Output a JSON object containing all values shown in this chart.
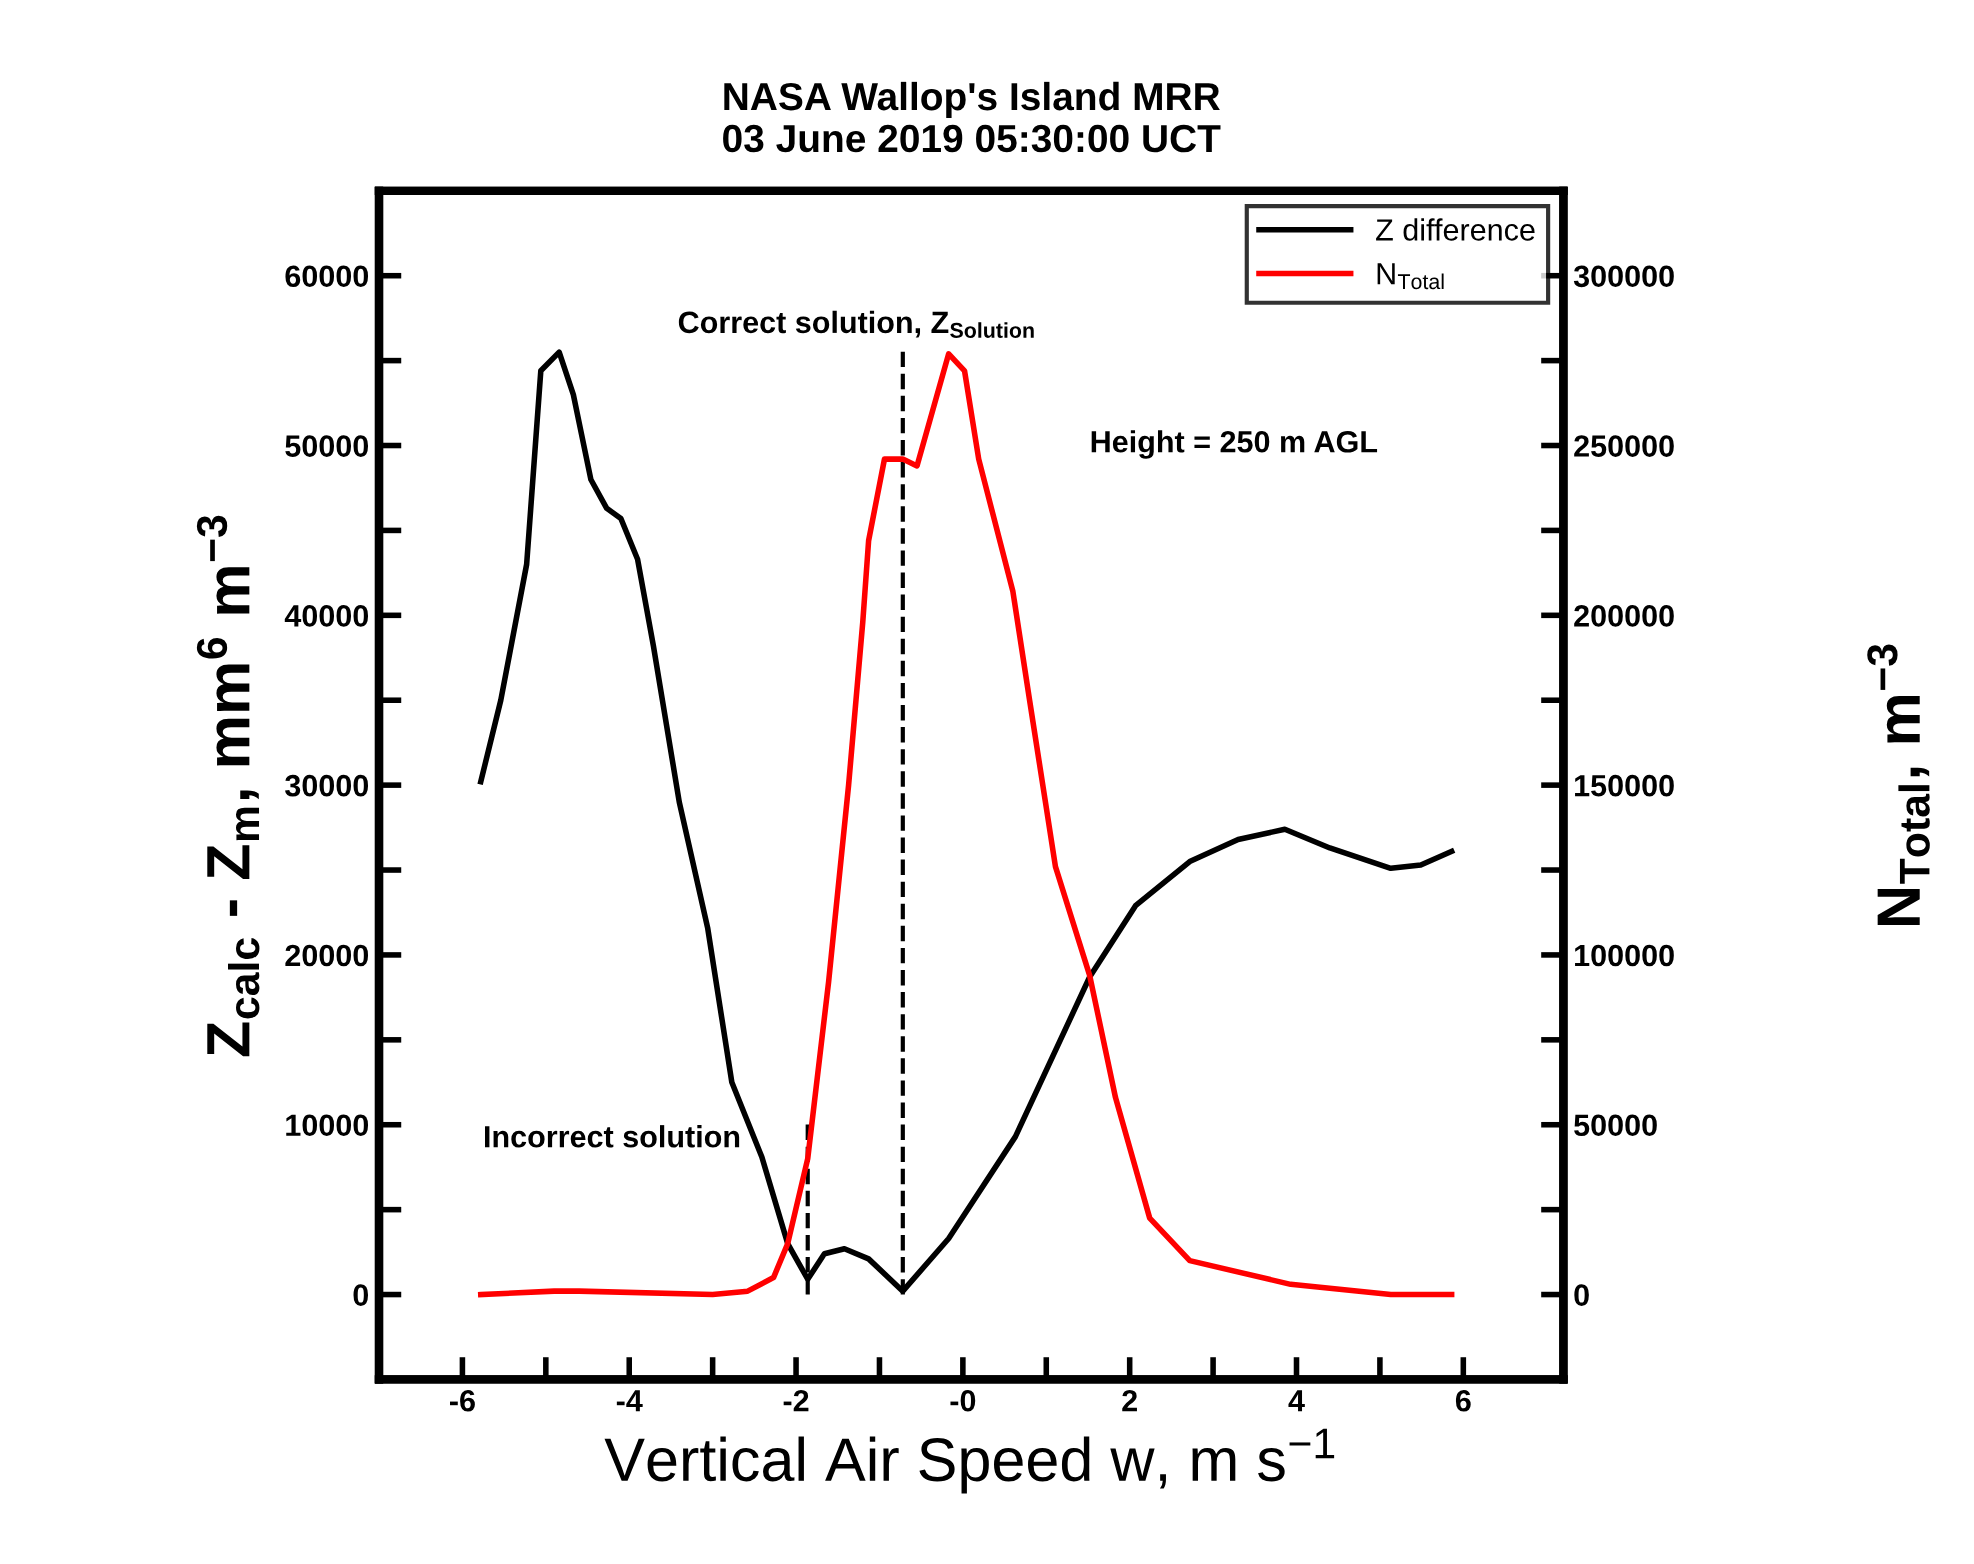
{
  "chart_data": {
    "type": "line",
    "title": "NASA Wallop's Island MRR\n03 June 2019 05:30:00 UCT",
    "xlabel": "Vertical Air Speed w, m s$^{−1}$",
    "ylabel": "Z$_{calc}$ - Z$_{m}$, mm$^{6}$ m$^{−3}$",
    "y2label": "N$_{Total}$, m$^{−3}$",
    "xlim": [
      -7,
      7.2
    ],
    "xticks": [
      {
        "value": -6,
        "label": "-6"
      },
      {
        "value": -5,
        "label": null
      },
      {
        "value": -4,
        "label": "-4"
      },
      {
        "value": -3,
        "label": null
      },
      {
        "value": -2,
        "label": "-2"
      },
      {
        "value": -1,
        "label": null
      },
      {
        "value": 0,
        "label": "-0"
      },
      {
        "value": 1,
        "label": null
      },
      {
        "value": 2,
        "label": "2"
      },
      {
        "value": 3,
        "label": null
      },
      {
        "value": 4,
        "label": "4"
      },
      {
        "value": 5,
        "label": null
      },
      {
        "value": 6,
        "label": "6"
      }
    ],
    "ylim": [
      -5000,
      65000
    ],
    "yticks": [
      0,
      {
        "value": 5000,
        "label": null
      },
      10000,
      {
        "value": 15000,
        "label": null
      },
      20000,
      {
        "value": 25000,
        "label": null
      },
      30000,
      {
        "value": 35000,
        "label": null
      },
      40000,
      {
        "value": 45000,
        "label": null
      },
      50000,
      {
        "value": 55000,
        "label": null
      },
      60000
    ],
    "y2lim": [
      -25000,
      325000
    ],
    "y2ticks": [
      0,
      {
        "value": 25000,
        "label": null
      },
      50000,
      {
        "value": 75000,
        "label": null
      },
      100000,
      {
        "value": 125000,
        "label": null
      },
      150000,
      {
        "value": 175000,
        "label": null
      },
      200000,
      {
        "value": 225000,
        "label": null
      },
      250000,
      {
        "value": 275000,
        "label": null
      },
      300000
    ],
    "grid": false,
    "legend": "top right",
    "line_style": "solid",
    "marker": "none",
    "series": [
      {
        "name": "Z difference",
        "color": "#000000",
        "x": [
          -5.78,
          -5.54,
          -5.23,
          -5.06,
          -4.84,
          -4.67,
          -4.46,
          -4.27,
          -4.1,
          -3.9,
          -3.71,
          -3.4,
          -3.06,
          -2.77,
          -2.41,
          -2.1,
          -1.86,
          -1.66,
          -1.42,
          -1.13,
          -0.72,
          -0.17,
          0.63,
          1.52,
          2.07,
          2.72,
          3.3,
          3.86,
          4.4,
          5.13,
          5.49,
          5.86
        ],
        "values": [
          30200,
          35000,
          43000,
          54400,
          55500,
          53000,
          48000,
          46300,
          45700,
          43300,
          38200,
          29000,
          21600,
          12500,
          8100,
          3000,
          900,
          2400,
          2700,
          2100,
          200,
          3300,
          9300,
          18700,
          22900,
          25500,
          26800,
          27400,
          26300,
          25100,
          25300,
          26100
        ]
      },
      {
        "name": "N$_{Total}$",
        "color": "#ff0000",
        "axis": "y2",
        "x": [
          -5.78,
          -4.9,
          -4.6,
          -3.0,
          -2.58,
          -2.27,
          -2.1,
          -1.86,
          -1.61,
          -1.37,
          -1.2,
          -1.13,
          -0.94,
          -0.72,
          -0.55,
          -0.17,
          0.02,
          0.19,
          0.6,
          0.8,
          0.99,
          1.11,
          1.52,
          1.83,
          2.24,
          2.72,
          3.93,
          5.13,
          5.86
        ],
        "values": [
          0,
          1000,
          1000,
          0,
          1000,
          5000,
          15000,
          40000,
          92000,
          150000,
          198000,
          222000,
          246000,
          246000,
          244000,
          277000,
          272000,
          246000,
          207000,
          175000,
          145000,
          126000,
          94000,
          58000,
          22500,
          10000,
          3000,
          0,
          0
        ]
      }
    ],
    "ref_lines": [
      {
        "axis": "x",
        "value": -1.86,
        "label": "Incorrect solution",
        "color": "#000000",
        "line_style": "dashed"
      },
      {
        "axis": "x",
        "value": -0.72,
        "label": "Correct solution, Z$_{Solution}$",
        "color": "#000000",
        "line_style": "dashed"
      }
    ],
    "annotations": [
      "Height = 250 m AGL"
    ]
  }
}
